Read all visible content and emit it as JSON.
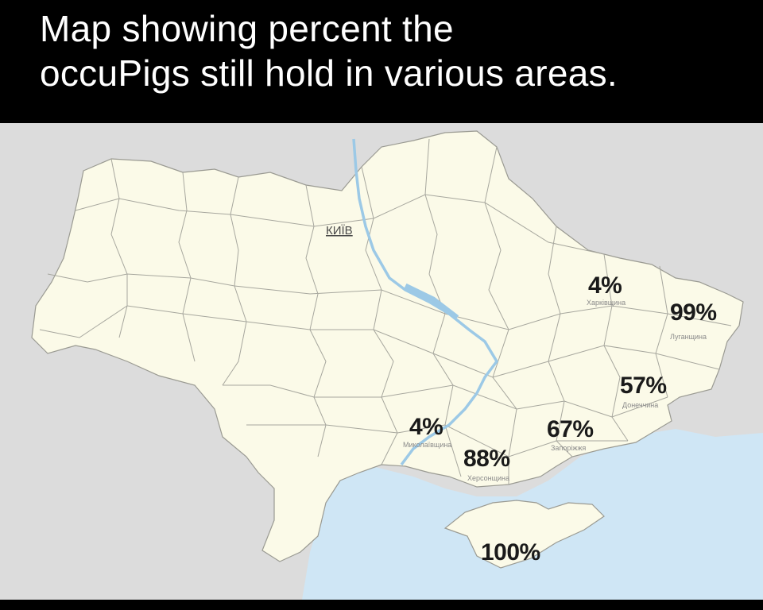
{
  "title": "Map showing percent the\noccuPigs still hold in various areas.",
  "colors": {
    "background": "#000000",
    "title_text": "#ffffff",
    "land_ukraine": "#fbfae8",
    "land_neighbors": "#dcdcdc",
    "water": "#cfe6f5",
    "borders": "#9a9a92",
    "label_text": "#1a1a1a"
  },
  "map": {
    "capital_label": "КИЇВ",
    "regions": [
      {
        "percent": "4%",
        "name": "Харківщина"
      },
      {
        "percent": "99%",
        "name": "Луганщина"
      },
      {
        "percent": "57%",
        "name": "Донеччина"
      },
      {
        "percent": "67%",
        "name": "Запоріжжя"
      },
      {
        "percent": "4%",
        "name": "Миколаївщина"
      },
      {
        "percent": "88%",
        "name": "Херсонщина"
      },
      {
        "percent": "100%",
        "name": ""
      }
    ]
  }
}
